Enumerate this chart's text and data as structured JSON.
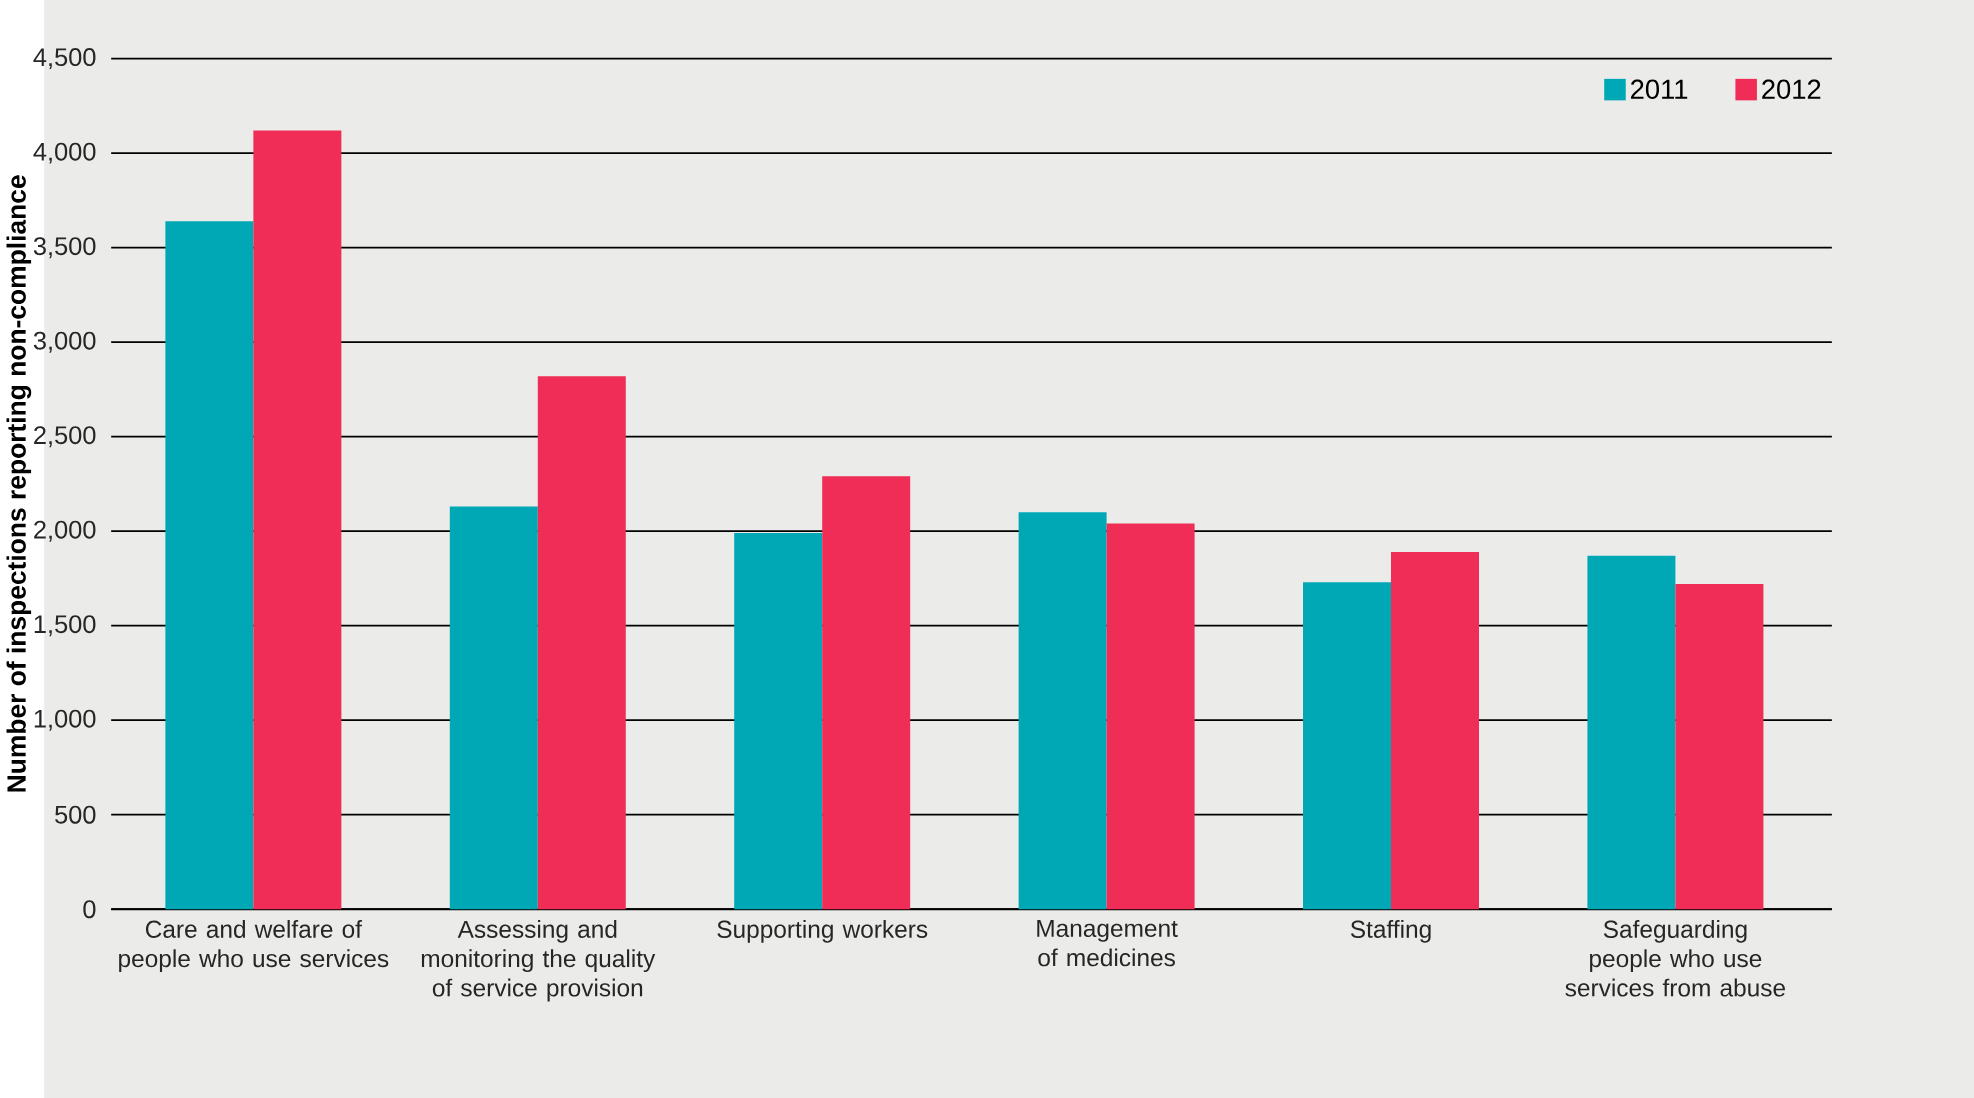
{
  "chart_data": {
    "type": "bar",
    "ylabel": "Number of inspections reporting non-compliance",
    "categories": [
      "Care and welfare of people who use services",
      "Assessing and monitoring the quality of service provision",
      "Supporting workers",
      "Management of medicines",
      "Staffing",
      "Safeguarding people who use services from abuse"
    ],
    "series": [
      {
        "name": "2011",
        "color": "#00a8b5",
        "values": [
          3640,
          2130,
          1990,
          2100,
          1730,
          1870
        ]
      },
      {
        "name": "2012",
        "color": "#ef2d56",
        "values": [
          4120,
          2820,
          2290,
          2040,
          1890,
          1720
        ]
      }
    ],
    "ylim": [
      0,
      4500
    ],
    "yticks": [
      0,
      500,
      {
        "value": 1000,
        "label": "1,000"
      },
      {
        "value": 1500,
        "label": "1,500"
      },
      {
        "value": 2000,
        "label": "2,000"
      },
      {
        "value": 2500,
        "label": "2,500"
      },
      {
        "value": 3000,
        "label": "3,000"
      },
      {
        "value": 3500,
        "label": "3,500"
      },
      {
        "value": 4000,
        "label": "4,000"
      },
      {
        "value": 4500,
        "label": "4,500"
      }
    ],
    "grid": "y",
    "legend": "top right"
  }
}
